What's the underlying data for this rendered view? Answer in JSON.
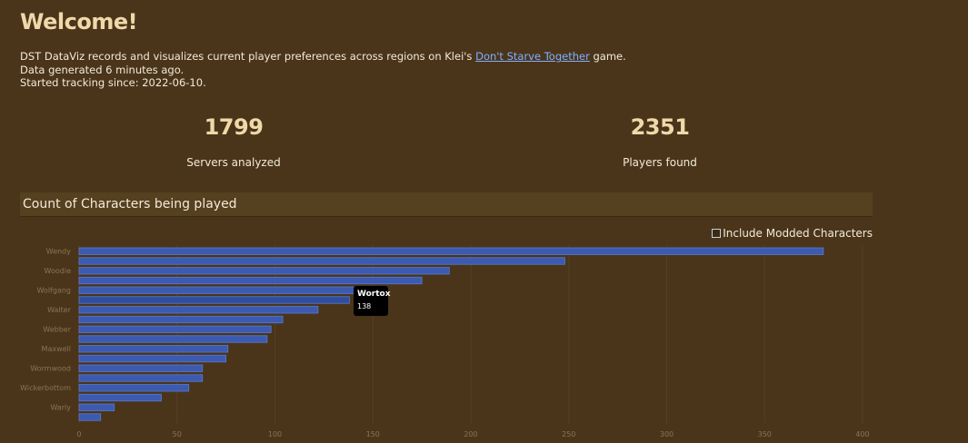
{
  "heading": "Welcome!",
  "intro": {
    "line1_prefix": "DST DataViz records and visualizes current player preferences across regions on Klei's ",
    "line1_link": "Don't Starve Together",
    "line1_suffix": " game.",
    "line2": "Data generated 6 minutes ago.",
    "line3": "Started tracking since: 2022-06-10."
  },
  "stats": [
    {
      "value": "1799",
      "label": "Servers analyzed"
    },
    {
      "value": "2351",
      "label": "Players found"
    }
  ],
  "section_title": "Count of Characters being played",
  "toggle_label": "Include Modded Characters",
  "tooltip": {
    "name": "Wortox",
    "value": "138"
  },
  "colors": {
    "bar": "#3c5bb0",
    "bar_highlight": "#2f4f9e",
    "bar_border": "#5a78c8"
  },
  "chart_data": {
    "type": "bar",
    "orientation": "horizontal",
    "title": "Count of Characters being played",
    "categories": [
      "Wendy",
      "",
      "Woodie",
      "",
      "Wolfgang",
      "Wortox",
      "Walter",
      "",
      "Webber",
      "",
      "Maxwell",
      "",
      "Wormwood",
      "",
      "Wickerbottom",
      "",
      "Warly",
      ""
    ],
    "values": [
      380,
      248,
      189,
      175,
      141,
      138,
      122,
      104,
      98,
      96,
      76,
      75,
      63,
      63,
      56,
      42,
      18,
      11
    ],
    "highlighted_index": 5,
    "xlim": [
      0,
      400
    ],
    "xticks": [
      0,
      50,
      100,
      150,
      200,
      250,
      300,
      350,
      400
    ],
    "grid": true
  }
}
